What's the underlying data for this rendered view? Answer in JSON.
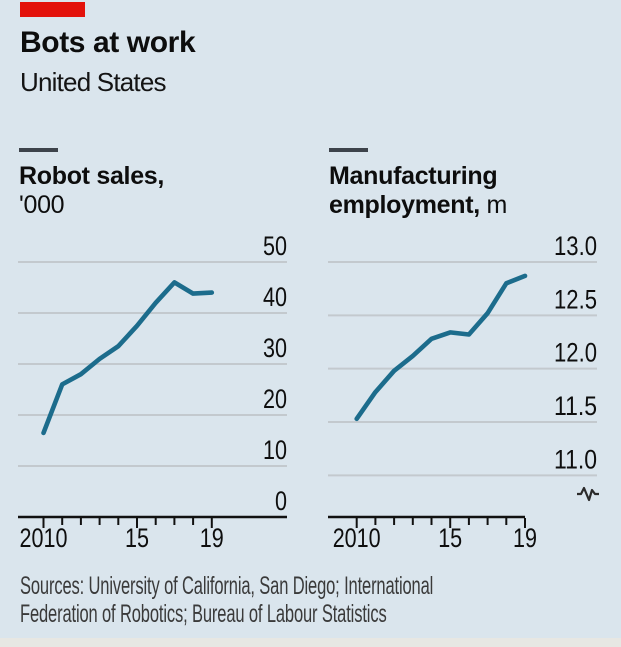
{
  "header": {
    "title": "Bots at work",
    "subtitle": "United States"
  },
  "charts": [
    {
      "title_bold_line1": "Robot sales,",
      "title_bold_line2": "",
      "title_regular_line2": "'000"
    },
    {
      "title_bold_line1": "Manufacturing",
      "title_bold_line2": "employment,",
      "title_regular_line2": " m"
    }
  ],
  "colors": {
    "accent_red": "#e3120b",
    "line_blue": "#1c6c8c",
    "background": "#dae5ed",
    "gridline": "#c3c9ce",
    "axis": "#111111",
    "text": "#0e0e0e"
  },
  "chart_data": [
    {
      "type": "line",
      "title": "Robot sales, '000",
      "x": [
        2010,
        2011,
        2012,
        2013,
        2014,
        2015,
        2016,
        2017,
        2018,
        2019
      ],
      "values": [
        16.5,
        26,
        28,
        31,
        33.5,
        37.5,
        42,
        46,
        43.8,
        44
      ],
      "ylim": [
        0,
        50
      ],
      "yticks": [
        {
          "value": 50,
          "label": "50"
        },
        {
          "value": 40,
          "label": "40"
        },
        {
          "value": 30,
          "label": "30"
        },
        {
          "value": 20,
          "label": "20"
        },
        {
          "value": 10,
          "label": "10"
        },
        {
          "value": 0,
          "label": "0"
        }
      ],
      "xtick_labels": [
        {
          "year": 2010,
          "label": "2010"
        },
        {
          "year": 2015,
          "label": "15"
        },
        {
          "year": 2019,
          "label": "19"
        }
      ],
      "grid": true,
      "legend": "none",
      "zero_baseline": true,
      "axis_break": false
    },
    {
      "type": "line",
      "title": "Manufacturing employment, m",
      "x": [
        2010,
        2011,
        2012,
        2013,
        2014,
        2015,
        2016,
        2017,
        2018,
        2019
      ],
      "values": [
        11.53,
        11.78,
        11.98,
        12.12,
        12.28,
        12.34,
        12.32,
        12.52,
        12.8,
        12.87
      ],
      "ylim": [
        11.0,
        13.0
      ],
      "yticks": [
        {
          "value": 13.0,
          "label": "13.0"
        },
        {
          "value": 12.5,
          "label": "12.5"
        },
        {
          "value": 12.0,
          "label": "12.0"
        },
        {
          "value": 11.5,
          "label": "11.5"
        },
        {
          "value": 11.0,
          "label": "11.0"
        }
      ],
      "xtick_labels": [
        {
          "year": 2010,
          "label": "2010"
        },
        {
          "year": 2015,
          "label": "15"
        },
        {
          "year": 2019,
          "label": "19"
        }
      ],
      "grid": true,
      "legend": "none",
      "zero_baseline": false,
      "axis_break": true
    }
  ],
  "footer": {
    "sources_line1": "Sources: University of California, San Diego; International",
    "sources_line2": "Federation of Robotics; Bureau of Labour Statistics"
  }
}
